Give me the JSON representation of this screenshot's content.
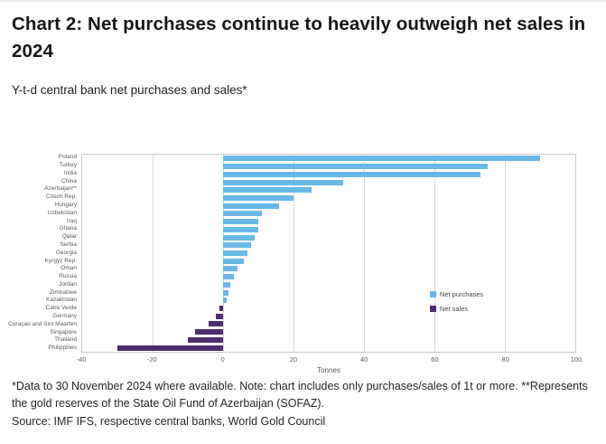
{
  "page": {
    "title": "Chart 2: Net purchases continue to heavily outweigh net sales in 2024",
    "subtitle": "Y-t-d central bank net purchases and sales*",
    "footnote": "*Data to 30 November 2024 where available. Note: chart includes only purchases/sales of 1t or more. **Represents the gold reserves of the State Oil Fund of Azerbaijan (SOFAZ).",
    "source": "Source: IMF IFS, respective central banks, World Gold Council"
  },
  "chart_data": {
    "type": "bar",
    "orientation": "horizontal",
    "title": "Y-t-d central bank net purchases and sales*",
    "xlabel": "Tonnes",
    "ylabel": "",
    "xlim": [
      -40,
      100
    ],
    "xticks": [
      -40,
      -20,
      0,
      20,
      40,
      60,
      80,
      100
    ],
    "grid": true,
    "categories": [
      "Poland",
      "Turkey",
      "India",
      "China",
      "Azerbaijan**",
      "Czech Rep.",
      "Hungary",
      "Uzbekistan",
      "Iraq",
      "Ghana",
      "Qatar",
      "Serbia",
      "Georgia",
      "Kyrgyz Rep.",
      "Oman",
      "Russia",
      "Jordan",
      "Zimbabwe",
      "Kazakhstan",
      "Cabo Verde",
      "Germany",
      "Curaçao and Sint Maarten",
      "Singapore",
      "Thailand",
      "Philippines"
    ],
    "values": [
      90,
      75,
      73,
      34,
      25,
      20,
      16,
      11,
      10,
      10,
      9,
      8,
      7,
      6,
      4,
      3,
      2,
      1.5,
      1,
      -1,
      -2,
      -4,
      -8,
      -10,
      -30
    ],
    "colors": {
      "positive": "#68b8e8",
      "negative": "#4e2d6e"
    },
    "legend_position": "right-inside",
    "legend": [
      {
        "label": "Net purchases",
        "color": "#68b8e8"
      },
      {
        "label": "Net sales",
        "color": "#4e2d6e"
      }
    ]
  }
}
